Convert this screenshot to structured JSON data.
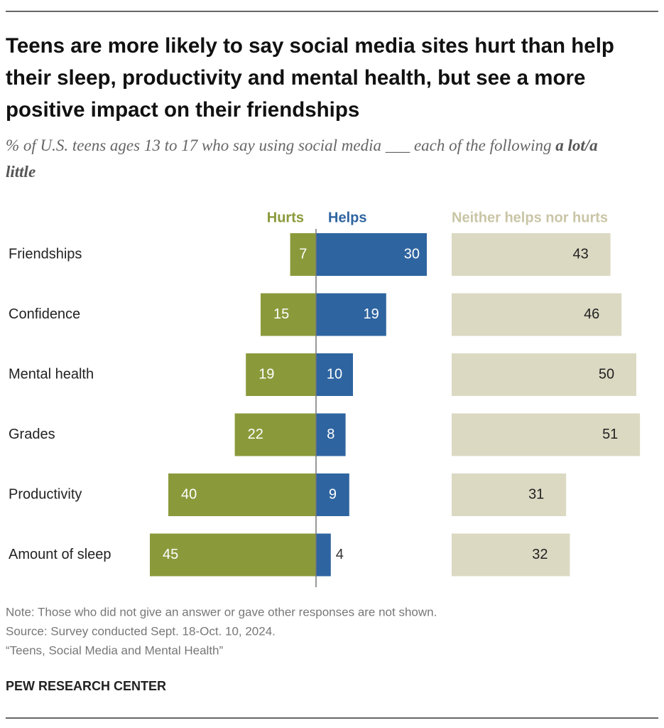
{
  "chart_data": {
    "type": "diverging_bar",
    "title": "Teens are more likely to say social media sites hurt than help their sleep, productivity and mental health, but see a more positive impact on their friendships",
    "subtitle": "% of U.S. teens ages 13 to 17 who say using social media ___ each of the following",
    "subtitle_emphasis": "a lot/a little",
    "categories": [
      "Friendships",
      "Confidence",
      "Mental health",
      "Grades",
      "Productivity",
      "Amount of sleep"
    ],
    "series": [
      {
        "name": "Hurts",
        "color": "#8a9a3b",
        "values": [
          7,
          15,
          19,
          22,
          40,
          45
        ]
      },
      {
        "name": "Helps",
        "color": "#2e64a0",
        "values": [
          30,
          19,
          10,
          8,
          9,
          4
        ]
      },
      {
        "name": "Neither helps nor hurts",
        "color": "#dcd9c3",
        "values": [
          43,
          46,
          50,
          51,
          31,
          32
        ]
      }
    ],
    "note": "Note: Those who did not give an answer or gave other responses are not shown.",
    "source": "Source: Survey conducted Sept. 18-Oct. 10, 2024.",
    "report": "“Teens, Social Media and Mental Health”",
    "org": "PEW RESEARCH CENTER"
  }
}
